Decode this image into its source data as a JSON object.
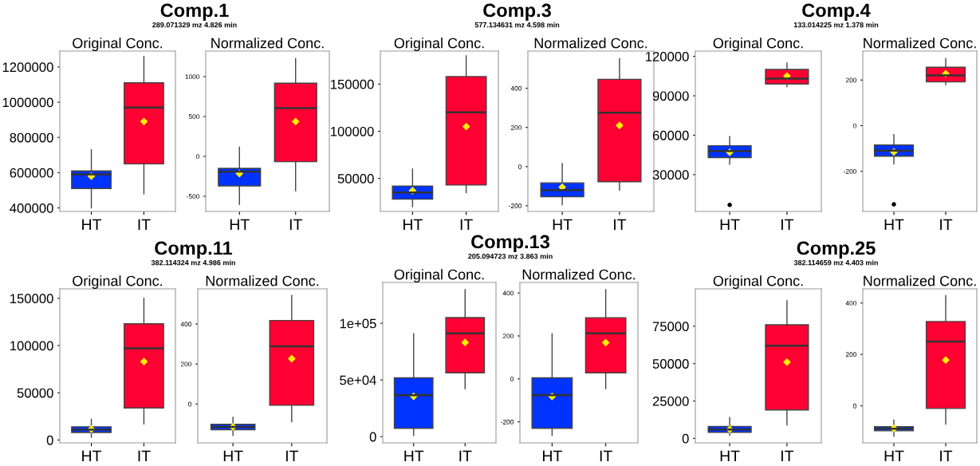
{
  "chart_data": [
    {
      "type": "box",
      "title": "Original Conc.",
      "annotations": [
        "Comp.1",
        "289.071329 mz 4.826 min"
      ],
      "categories": [
        "HT",
        "IT"
      ],
      "colors": [
        "#0033ff",
        "#ff0033"
      ],
      "marker": "diamond",
      "ylim": [
        380000,
        1290000
      ],
      "yticks": [
        400000,
        600000,
        800000,
        1000000,
        1200000
      ],
      "boxes": [
        {
          "low": 400000,
          "q1": 510000,
          "median": 590000,
          "q3": 610000,
          "high": 730000,
          "mean": 580000
        },
        {
          "low": 480000,
          "q1": 650000,
          "median": 970000,
          "q3": 1110000,
          "high": 1260000,
          "mean": 890000
        }
      ]
    },
    {
      "type": "box",
      "title": "Normalized Conc.",
      "categories": [
        "HT",
        "IT"
      ],
      "colors": [
        "#0033ff",
        "#ff0033"
      ],
      "marker": "diamond",
      "ylim": [
        -690,
        1320
      ],
      "yticks": [
        -500,
        0,
        500,
        1000
      ],
      "boxes": [
        {
          "low": -600,
          "q1": -370,
          "median": -190,
          "q3": -150,
          "high": 115,
          "mean": -215
        },
        {
          "low": -430,
          "q1": -66,
          "median": 606,
          "q3": 917,
          "high": 1225,
          "mean": 437
        }
      ]
    },
    {
      "type": "box",
      "title": "Original Conc.",
      "annotations": [
        "Comp.3",
        "577.134631 mz 4.598 min"
      ],
      "categories": [
        "HT",
        "IT"
      ],
      "colors": [
        "#0033ff",
        "#ff0033"
      ],
      "marker": "diamond",
      "ylim": [
        15000,
        185000
      ],
      "yticks": [
        50000,
        100000,
        150000
      ],
      "boxes": [
        {
          "low": 20000,
          "q1": 28000,
          "median": 35000,
          "q3": 42000,
          "high": 60000,
          "mean": 37000
        },
        {
          "low": 35000,
          "q1": 43000,
          "median": 120000,
          "q3": 158000,
          "high": 180000,
          "mean": 105000
        }
      ]
    },
    {
      "type": "box",
      "title": "Normalized Conc.",
      "categories": [
        "HT",
        "IT"
      ],
      "colors": [
        "#0033ff",
        "#ff0033"
      ],
      "marker": "diamond",
      "ylim": [
        -229,
        590
      ],
      "yticks": [
        -200,
        0,
        200,
        400
      ],
      "boxes": [
        {
          "low": -195,
          "q1": -154,
          "median": -120,
          "q3": -83,
          "high": 16,
          "mean": -105
        },
        {
          "low": -120,
          "q1": -77,
          "median": 275,
          "q3": 446,
          "high": 552,
          "mean": 210
        }
      ]
    },
    {
      "type": "box",
      "title": "Original Conc.",
      "annotations": [
        "Comp.4",
        "133.014225 mz 1.378 min"
      ],
      "categories": [
        "HT",
        "IT"
      ],
      "colors": [
        "#0033ff",
        "#ff0033"
      ],
      "marker": "diamond",
      "ylim": [
        2000,
        124000
      ],
      "yticks": [
        30000,
        60000,
        90000,
        120000
      ],
      "boxes": [
        {
          "low": 38000,
          "q1": 43000,
          "median": 48000,
          "q3": 52000,
          "high": 59000,
          "mean": 47000,
          "outliers": [
            7000
          ]
        },
        {
          "low": 97000,
          "q1": 99000,
          "median": 103000,
          "q3": 110000,
          "high": 115000,
          "mean": 105000
        }
      ]
    },
    {
      "type": "box",
      "title": "Normalized Conc.",
      "categories": [
        "HT",
        "IT"
      ],
      "colors": [
        "#0033ff",
        "#ff0033"
      ],
      "marker": "diamond",
      "ylim": [
        -376,
        327
      ],
      "yticks": [
        -200,
        0,
        200
      ],
      "boxes": [
        {
          "low": -167,
          "q1": -134,
          "median": -109,
          "q3": -85,
          "high": -39,
          "mean": -115,
          "outliers": [
            -345
          ]
        },
        {
          "low": 180,
          "q1": 192,
          "median": 220,
          "q3": 256,
          "high": 294,
          "mean": 228
        }
      ]
    },
    {
      "type": "box",
      "title": "Original Conc.",
      "annotations": [
        "Comp.11",
        "382.114324 mz 4.986 min"
      ],
      "categories": [
        "HT",
        "IT"
      ],
      "colors": [
        "#0033ff",
        "#ff0033"
      ],
      "marker": "diamond",
      "ylim": [
        -3000,
        160000
      ],
      "yticks": [
        0,
        50000,
        100000,
        150000
      ],
      "boxes": [
        {
          "low": 3000,
          "q1": 8000,
          "median": 11000,
          "q3": 14000,
          "high": 22000,
          "mean": 11500
        },
        {
          "low": 17000,
          "q1": 34000,
          "median": 97000,
          "q3": 123000,
          "high": 150000,
          "mean": 83000
        }
      ]
    },
    {
      "type": "box",
      "title": "Normalized Conc.",
      "categories": [
        "HT",
        "IT"
      ],
      "colors": [
        "#0033ff",
        "#ff0033"
      ],
      "marker": "diamond",
      "ylim": [
        -194,
        576
      ],
      "yticks": [
        0,
        200,
        400
      ],
      "boxes": [
        {
          "low": -156,
          "q1": -128,
          "median": -114,
          "q3": -101,
          "high": -66,
          "mean": -114
        },
        {
          "low": -88,
          "q1": -6,
          "median": 289,
          "q3": 418,
          "high": 543,
          "mean": 227
        }
      ]
    },
    {
      "type": "box",
      "title": "Original Conc.",
      "annotations": [
        "Comp.13",
        "205.094723 mz 3.863 min"
      ],
      "categories": [
        "HT",
        "IT"
      ],
      "colors": [
        "#0033ff",
        "#ff0033"
      ],
      "marker": "diamond",
      "ylim": [
        -5500,
        136000
      ],
      "yticks": [
        0,
        {
          "value": 50000,
          "label": "5e+04"
        },
        {
          "value": 100000,
          "label": "1e+05"
        }
      ],
      "boxes": [
        {
          "low": 1100,
          "q1": 7300,
          "median": 36600,
          "q3": 51900,
          "high": 90800,
          "mean": 35500
        },
        {
          "low": 42300,
          "q1": 56300,
          "median": 91100,
          "q3": 105000,
          "high": 129700,
          "mean": 83100
        }
      ]
    },
    {
      "type": "box",
      "title": "Normalized Conc.",
      "categories": [
        "HT",
        "IT"
      ],
      "colors": [
        "#0033ff",
        "#ff0033"
      ],
      "marker": "diamond",
      "ylim": [
        -298,
        449
      ],
      "yticks": [
        -200,
        0,
        200,
        400
      ],
      "boxes": [
        {
          "low": -263,
          "q1": -230,
          "median": -76,
          "q3": 5,
          "high": 210,
          "mean": -82
        },
        {
          "low": -45,
          "q1": 28,
          "median": 212,
          "q3": 285,
          "high": 416,
          "mean": 169
        }
      ]
    },
    {
      "type": "box",
      "title": "Original Conc.",
      "annotations": [
        "Comp.25",
        "382.114659 mz 4.403 min"
      ],
      "categories": [
        "HT",
        "IT"
      ],
      "colors": [
        "#0033ff",
        "#ff0033"
      ],
      "marker": "diamond",
      "ylim": [
        -3000,
        100000
      ],
      "yticks": [
        0,
        25000,
        50000,
        75000
      ],
      "boxes": [
        {
          "low": 2000,
          "q1": 4000,
          "median": 6000,
          "q3": 8000,
          "high": 14000,
          "mean": 6000
        },
        {
          "low": 9000,
          "q1": 19000,
          "median": 62000,
          "q3": 76000,
          "high": 92000,
          "mean": 51000
        }
      ]
    },
    {
      "type": "box",
      "title": "Normalized Conc.",
      "categories": [
        "HT",
        "IT"
      ],
      "colors": [
        "#0033ff",
        "#ff0033"
      ],
      "marker": "diamond",
      "ylim": [
        -144,
        455
      ],
      "yticks": [
        0,
        200,
        400
      ],
      "boxes": [
        {
          "low": -118,
          "q1": -97,
          "median": -89,
          "q3": -81,
          "high": -55,
          "mean": -88
        },
        {
          "low": -71,
          "q1": -10,
          "median": 250,
          "q3": 328,
          "high": 429,
          "mean": 178
        }
      ]
    }
  ]
}
